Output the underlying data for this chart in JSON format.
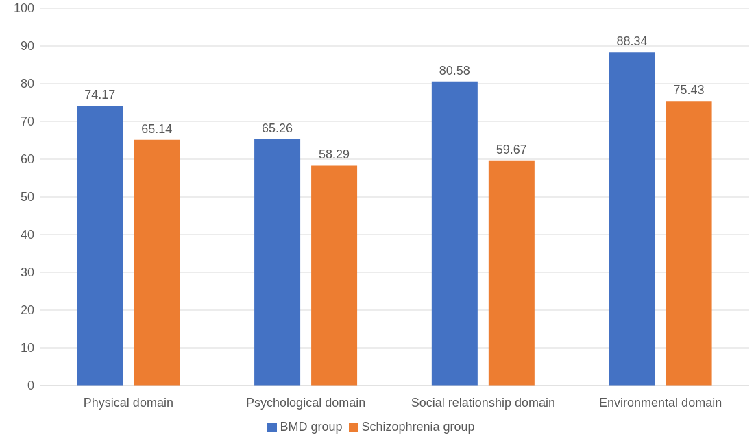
{
  "chart_data": {
    "type": "bar",
    "categories": [
      "Physical domain",
      "Psychological domain",
      "Social relationship domain",
      "Environmental domain"
    ],
    "series": [
      {
        "name": "BMD group",
        "color": "#4472c4",
        "values": [
          74.17,
          65.26,
          80.58,
          88.34
        ]
      },
      {
        "name": "Schizophrenia group",
        "color": "#ed7d31",
        "values": [
          65.14,
          58.29,
          59.67,
          75.43
        ]
      }
    ],
    "ylim": [
      0,
      100
    ],
    "yticks": [
      0,
      10,
      20,
      30,
      40,
      50,
      60,
      70,
      80,
      90,
      100
    ],
    "grid": "y",
    "legend": "bottom",
    "data_labels": true
  }
}
